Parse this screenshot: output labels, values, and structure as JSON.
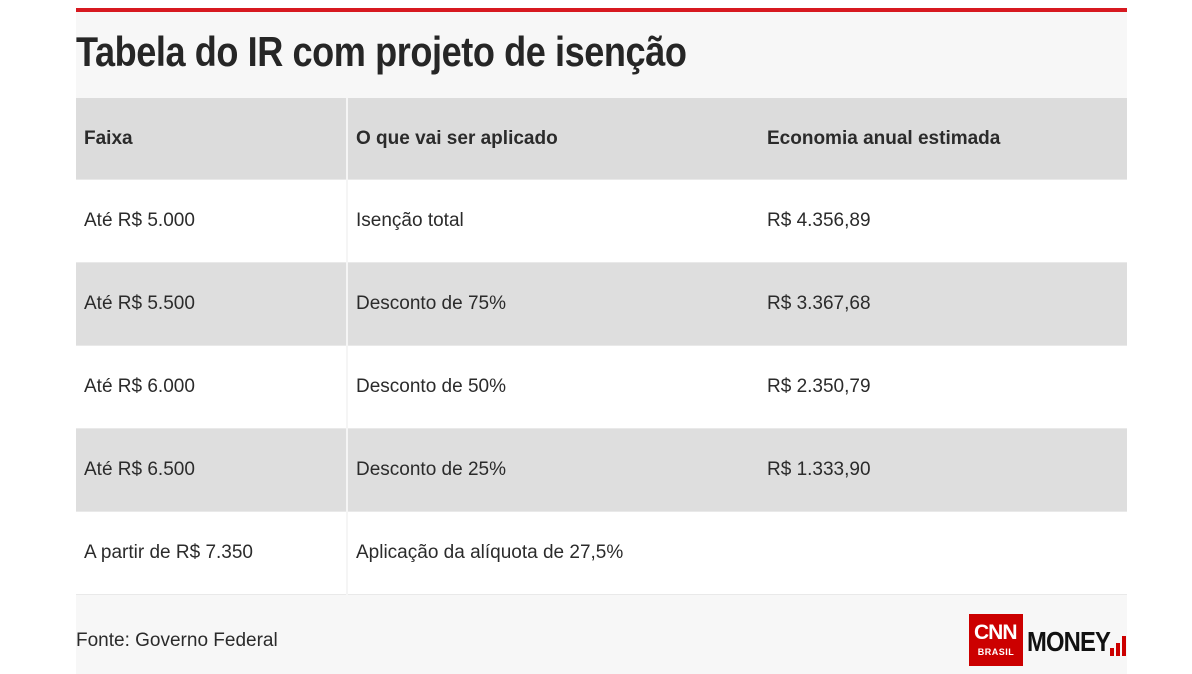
{
  "title": "Tabela do IR com projeto de isenção",
  "table": {
    "headers": [
      "Faixa",
      "O que vai ser aplicado",
      "Economia anual estimada"
    ],
    "rows": [
      [
        "Até R$ 5.000",
        "Isenção total",
        "R$ 4.356,89"
      ],
      [
        "Até R$ 5.500",
        "Desconto de 75%",
        "R$ 3.367,68"
      ],
      [
        "Até R$ 6.000",
        "Desconto de 50%",
        "R$ 2.350,79"
      ],
      [
        "Até R$ 6.500",
        "Desconto de 25%",
        "R$ 1.333,90"
      ],
      [
        "A partir de R$ 7.350",
        "Aplicação da alíquota de 27,5%",
        ""
      ]
    ]
  },
  "source": "Fonte: Governo Federal",
  "logo": {
    "brand": "CNN",
    "sub": "BRASIL",
    "product": "MONEY",
    "accent": "#cc0000"
  },
  "colors": {
    "top_bar": "#d71920",
    "header_bg": "#dcdcdc",
    "alt_row_bg": "#dedede"
  }
}
